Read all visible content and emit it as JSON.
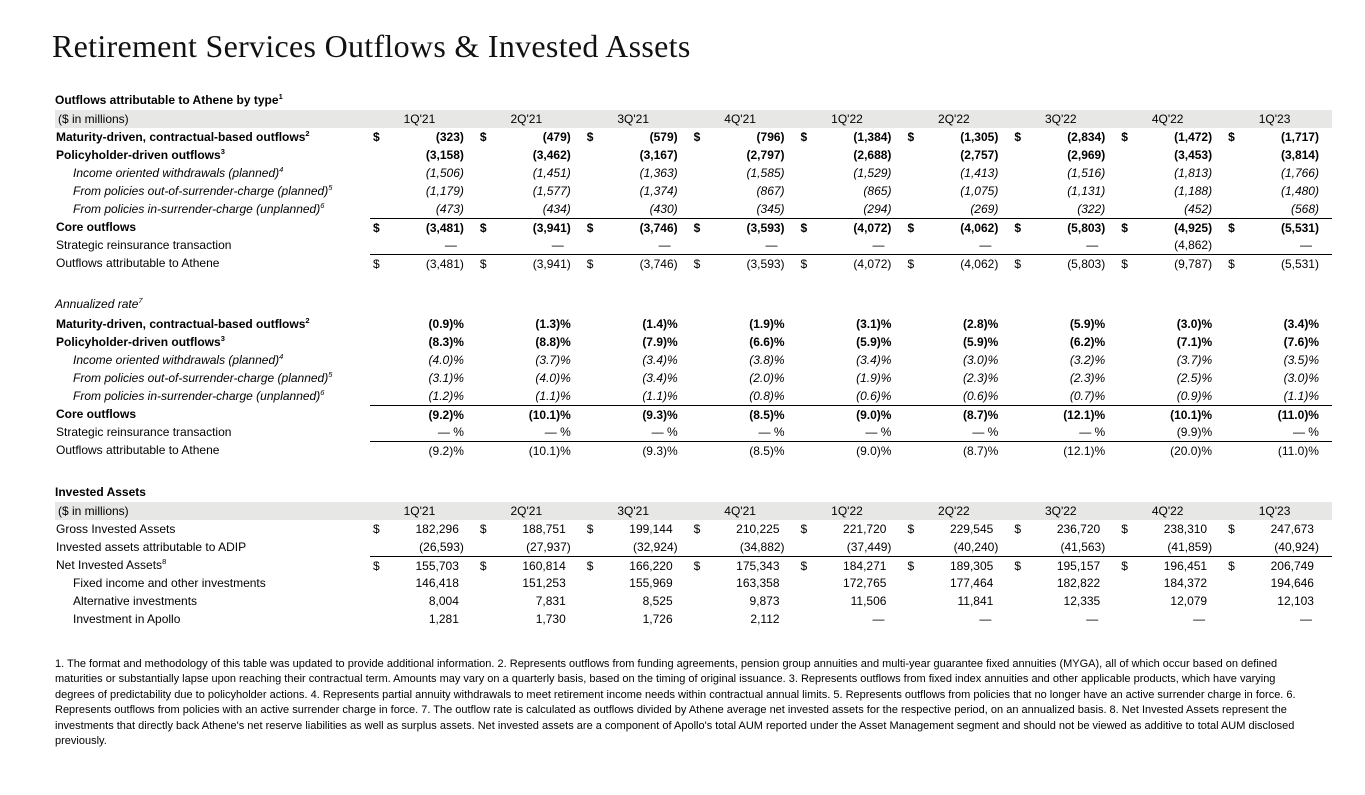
{
  "page": {
    "title": "Retirement Services Outflows & Invested Assets"
  },
  "money_label": "($ in millions)",
  "columns": [
    "1Q'21",
    "2Q'21",
    "3Q'21",
    "4Q'21",
    "1Q'22",
    "2Q'22",
    "3Q'22",
    "4Q'22",
    "1Q'23"
  ],
  "tables": [
    {
      "id": "outflows",
      "heading": "Outflows attributable to Athene by type",
      "heading_sup": "1",
      "heading_style": "strong",
      "show_header": true,
      "rows": [
        {
          "label": "Maturity-driven, contractual-based outflows",
          "sup": "2",
          "kind": "total",
          "dollar": true,
          "values": [
            "(323)",
            "(479)",
            "(579)",
            "(796)",
            "(1,384)",
            "(1,305)",
            "(2,834)",
            "(1,472)",
            "(1,717)"
          ]
        },
        {
          "label": "Policyholder-driven outflows",
          "sup": "3",
          "kind": "total",
          "values": [
            "(3,158)",
            "(3,462)",
            "(3,167)",
            "(2,797)",
            "(2,688)",
            "(2,757)",
            "(2,969)",
            "(3,453)",
            "(3,814)"
          ]
        },
        {
          "label": "Income oriented withdrawals (planned)",
          "sup": "4",
          "kind": "sub",
          "values": [
            "(1,506)",
            "(1,451)",
            "(1,363)",
            "(1,585)",
            "(1,529)",
            "(1,413)",
            "(1,516)",
            "(1,813)",
            "(1,766)"
          ]
        },
        {
          "label": "From policies out-of-surrender-charge (planned)",
          "sup": "5",
          "kind": "sub",
          "values": [
            "(1,179)",
            "(1,577)",
            "(1,374)",
            "(867)",
            "(865)",
            "(1,075)",
            "(1,131)",
            "(1,188)",
            "(1,480)"
          ]
        },
        {
          "label": "From policies in-surrender-charge (unplanned)",
          "sup": "6",
          "kind": "sub",
          "values": [
            "(473)",
            "(434)",
            "(430)",
            "(345)",
            "(294)",
            "(269)",
            "(322)",
            "(452)",
            "(568)"
          ]
        },
        {
          "label": "Core outflows",
          "kind": "total",
          "dollar": true,
          "rule_above": true,
          "values": [
            "(3,481)",
            "(3,941)",
            "(3,746)",
            "(3,593)",
            "(4,072)",
            "(4,062)",
            "(5,803)",
            "(4,925)",
            "(5,531)"
          ]
        },
        {
          "label": "Strategic reinsurance transaction",
          "kind": "plain",
          "values": [
            "—",
            "—",
            "—",
            "—",
            "—",
            "—",
            "—",
            "(4,862)",
            "—"
          ]
        },
        {
          "label": "Outflows attributable to Athene",
          "kind": "plain",
          "dollar": true,
          "rule_above": true,
          "values": [
            "(3,481)",
            "(3,941)",
            "(3,746)",
            "(3,593)",
            "(4,072)",
            "(4,062)",
            "(5,803)",
            "(9,787)",
            "(5,531)"
          ]
        }
      ]
    },
    {
      "id": "rates",
      "heading": "Annualized rate",
      "heading_sup": "7",
      "heading_style": "italic",
      "show_header": false,
      "rows": [
        {
          "label": "Maturity-driven, contractual-based outflows",
          "sup": "2",
          "kind": "total",
          "values": [
            "(0.9)%",
            "(1.3)%",
            "(1.4)%",
            "(1.9)%",
            "(3.1)%",
            "(2.8)%",
            "(5.9)%",
            "(3.0)%",
            "(3.4)%"
          ]
        },
        {
          "label": "Policyholder-driven outflows",
          "sup": "3",
          "kind": "total",
          "values": [
            "(8.3)%",
            "(8.8)%",
            "(7.9)%",
            "(6.6)%",
            "(5.9)%",
            "(5.9)%",
            "(6.2)%",
            "(7.1)%",
            "(7.6)%"
          ]
        },
        {
          "label": "Income oriented withdrawals (planned)",
          "sup": "4",
          "kind": "sub",
          "values": [
            "(4.0)%",
            "(3.7)%",
            "(3.4)%",
            "(3.8)%",
            "(3.4)%",
            "(3.0)%",
            "(3.2)%",
            "(3.7)%",
            "(3.5)%"
          ]
        },
        {
          "label": "From policies out-of-surrender-charge (planned)",
          "sup": "5",
          "kind": "sub",
          "values": [
            "(3.1)%",
            "(4.0)%",
            "(3.4)%",
            "(2.0)%",
            "(1.9)%",
            "(2.3)%",
            "(2.3)%",
            "(2.5)%",
            "(3.0)%"
          ]
        },
        {
          "label": "From policies in-surrender-charge (unplanned)",
          "sup": "6",
          "kind": "sub",
          "values": [
            "(1.2)%",
            "(1.1)%",
            "(1.1)%",
            "(0.8)%",
            "(0.6)%",
            "(0.6)%",
            "(0.7)%",
            "(0.9)%",
            "(1.1)%"
          ]
        },
        {
          "label": "Core outflows",
          "kind": "total",
          "rule_above": true,
          "values": [
            "(9.2)%",
            "(10.1)%",
            "(9.3)%",
            "(8.5)%",
            "(9.0)%",
            "(8.7)%",
            "(12.1)%",
            "(10.1)%",
            "(11.0)%"
          ]
        },
        {
          "label": "Strategic reinsurance transaction",
          "kind": "plain",
          "values": [
            "— %",
            "— %",
            "— %",
            "— %",
            "— %",
            "— %",
            "— %",
            "(9.9)%",
            "— %"
          ]
        },
        {
          "label": "Outflows attributable to Athene",
          "kind": "plain",
          "rule_above": true,
          "values": [
            "(9.2)%",
            "(10.1)%",
            "(9.3)%",
            "(8.5)%",
            "(9.0)%",
            "(8.7)%",
            "(12.1)%",
            "(20.0)%",
            "(11.0)%"
          ]
        }
      ]
    },
    {
      "id": "invested",
      "heading": "Invested Assets",
      "heading_sup": "",
      "heading_style": "strong",
      "show_header": true,
      "rows": [
        {
          "label": "Gross Invested Assets",
          "kind": "plain",
          "dollar": true,
          "values": [
            "182,296",
            "188,751",
            "199,144",
            "210,225",
            "221,720",
            "229,545",
            "236,720",
            "238,310",
            "247,673"
          ]
        },
        {
          "label": "Invested assets attributable to ADIP",
          "kind": "plain",
          "values": [
            "(26,593)",
            "(27,937)",
            "(32,924)",
            "(34,882)",
            "(37,449)",
            "(40,240)",
            "(41,563)",
            "(41,859)",
            "(40,924)"
          ]
        },
        {
          "label": "Net Invested Assets",
          "sup": "8",
          "kind": "plain",
          "dollar": true,
          "rule_above": true,
          "values": [
            "155,703",
            "160,814",
            "166,220",
            "175,343",
            "184,271",
            "189,305",
            "195,157",
            "196,451",
            "206,749"
          ]
        },
        {
          "label": "Fixed income and other investments",
          "kind": "subplain",
          "values": [
            "146,418",
            "151,253",
            "155,969",
            "163,358",
            "172,765",
            "177,464",
            "182,822",
            "184,372",
            "194,646"
          ]
        },
        {
          "label": "Alternative investments",
          "kind": "subplain",
          "values": [
            "8,004",
            "7,831",
            "8,525",
            "9,873",
            "11,506",
            "11,841",
            "12,335",
            "12,079",
            "12,103"
          ]
        },
        {
          "label": "Investment in Apollo",
          "kind": "subplain",
          "values": [
            "1,281",
            "1,730",
            "1,726",
            "2,112",
            "—",
            "—",
            "—",
            "—",
            "—"
          ]
        }
      ]
    }
  ],
  "footnotes": "1. The format and methodology of this table was updated to provide additional information. 2. Represents outflows from funding agreements, pension group annuities and multi-year guarantee fixed annuities (MYGA), all of which occur based on defined maturities or substantially lapse upon reaching their contractual term. Amounts may vary on a quarterly basis, based on the timing of original issuance. 3. Represents outflows from fixed index annuities and other applicable products, which have varying degrees of predictability due to policyholder actions. 4. Represents partial annuity withdrawals to meet retirement income needs within contractual annual limits. 5. Represents outflows from policies that no longer have an active surrender charge in force. 6. Represents outflows from policies with an active surrender charge in force. 7. The outflow rate is calculated as outflows divided by Athene average net invested assets for the respective period, on an annualized basis. 8. Net Invested Assets represent the investments that directly back Athene's net reserve liabilities as well as surplus assets. Net invested assets are a component of Apollo's total AUM reported under the Asset Management segment and should not be viewed as additive to total AUM disclosed previously."
}
